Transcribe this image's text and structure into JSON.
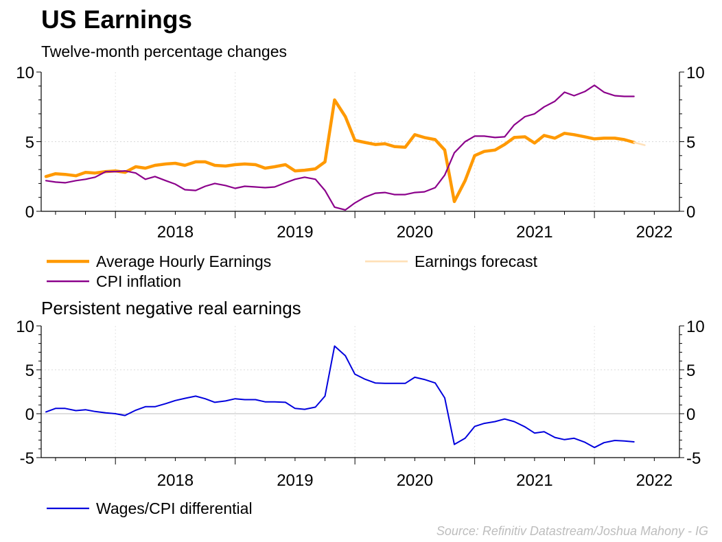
{
  "header": {
    "title": "US Earnings",
    "subtitle": "Twelve-month percentage changes"
  },
  "footer": {
    "source": "Source: Refinitiv Datastream/Joshua Mahony - IG"
  },
  "chart_data": [
    {
      "type": "line",
      "title": "",
      "x_ticks": [
        "2018",
        "2019",
        "2020",
        "2021",
        "2022"
      ],
      "ylim": [
        0,
        10
      ],
      "y_ticks": [
        "0",
        "5",
        "10"
      ],
      "grid": true,
      "dual_axis": true,
      "x_range": [
        2017.38,
        2022.71
      ],
      "legend_position": "bottom",
      "series": [
        {
          "name": "Average Hourly Earnings",
          "color": "#ff9900",
          "x": [
            2017.42,
            2017.5,
            2017.58,
            2017.67,
            2017.75,
            2017.83,
            2017.92,
            2018.0,
            2018.08,
            2018.17,
            2018.25,
            2018.33,
            2018.42,
            2018.5,
            2018.58,
            2018.67,
            2018.75,
            2018.83,
            2018.92,
            2019.0,
            2019.08,
            2019.17,
            2019.25,
            2019.33,
            2019.42,
            2019.5,
            2019.58,
            2019.67,
            2019.75,
            2019.83,
            2019.92,
            2020.0,
            2020.08,
            2020.17,
            2020.25,
            2020.33,
            2020.42,
            2020.5,
            2020.58,
            2020.67,
            2020.75,
            2020.83,
            2020.92,
            2021.0,
            2021.08,
            2021.17,
            2021.25,
            2021.33,
            2021.42,
            2021.5,
            2021.58,
            2021.67,
            2021.75,
            2021.83,
            2021.92,
            2022.0,
            2022.08,
            2022.17,
            2022.25,
            2022.33
          ],
          "values": [
            2.5,
            2.7,
            2.65,
            2.55,
            2.8,
            2.75,
            2.85,
            2.9,
            2.8,
            3.2,
            3.1,
            3.3,
            3.4,
            3.45,
            3.3,
            3.55,
            3.55,
            3.3,
            3.25,
            3.35,
            3.4,
            3.35,
            3.1,
            3.2,
            3.35,
            2.9,
            2.95,
            3.05,
            3.55,
            8.0,
            6.8,
            5.1,
            4.95,
            4.8,
            4.85,
            4.65,
            4.6,
            5.5,
            5.3,
            5.15,
            4.4,
            0.7,
            2.2,
            4.0,
            4.3,
            4.4,
            4.8,
            5.3,
            5.35,
            4.9,
            5.45,
            5.25,
            5.6,
            5.5,
            5.35,
            5.2,
            5.25,
            5.25,
            5.15,
            4.95
          ]
        },
        {
          "name": "Earnings forecast",
          "color": "#ffe0b8",
          "x": [
            2022.33,
            2022.42
          ],
          "values": [
            4.95,
            4.75
          ]
        },
        {
          "name": "CPI inflation",
          "color": "#8b008b",
          "x": [
            2017.42,
            2017.5,
            2017.58,
            2017.67,
            2017.75,
            2017.83,
            2017.92,
            2018.0,
            2018.08,
            2018.17,
            2018.25,
            2018.33,
            2018.42,
            2018.5,
            2018.58,
            2018.67,
            2018.75,
            2018.83,
            2018.92,
            2019.0,
            2019.08,
            2019.17,
            2019.25,
            2019.33,
            2019.42,
            2019.5,
            2019.58,
            2019.67,
            2019.75,
            2019.83,
            2019.92,
            2020.0,
            2020.08,
            2020.17,
            2020.25,
            2020.33,
            2020.42,
            2020.5,
            2020.58,
            2020.67,
            2020.75,
            2020.83,
            2020.92,
            2021.0,
            2021.08,
            2021.17,
            2021.25,
            2021.33,
            2021.42,
            2021.5,
            2021.58,
            2021.67,
            2021.75,
            2021.83,
            2021.92,
            2022.0,
            2022.08,
            2022.17,
            2022.25,
            2022.33
          ],
          "values": [
            2.2,
            2.1,
            2.05,
            2.2,
            2.3,
            2.45,
            2.85,
            2.85,
            2.9,
            2.75,
            2.3,
            2.5,
            2.2,
            1.95,
            1.55,
            1.5,
            1.8,
            2.0,
            1.85,
            1.65,
            1.8,
            1.75,
            1.7,
            1.75,
            2.05,
            2.3,
            2.45,
            2.3,
            1.5,
            0.3,
            0.1,
            0.6,
            1.0,
            1.3,
            1.35,
            1.2,
            1.2,
            1.35,
            1.4,
            1.7,
            2.6,
            4.2,
            5.0,
            5.4,
            5.4,
            5.3,
            5.35,
            6.2,
            6.8,
            7.0,
            7.5,
            7.9,
            8.55,
            8.3,
            8.6,
            9.05,
            8.55,
            8.3,
            8.25,
            8.25
          ]
        }
      ]
    },
    {
      "type": "line",
      "title": "Persistent negative real earnings",
      "x_ticks": [
        "2018",
        "2019",
        "2020",
        "2021",
        "2022"
      ],
      "ylim": [
        -5,
        10
      ],
      "y_ticks": [
        "-5",
        "0",
        "5",
        "10"
      ],
      "grid": true,
      "dual_axis": true,
      "x_range": [
        2017.38,
        2022.71
      ],
      "legend_position": "bottom",
      "series": [
        {
          "name": "Wages/CPI differential",
          "color": "#0000dd",
          "x": [
            2017.42,
            2017.5,
            2017.58,
            2017.67,
            2017.75,
            2017.83,
            2017.92,
            2018.0,
            2018.08,
            2018.17,
            2018.25,
            2018.33,
            2018.42,
            2018.5,
            2018.58,
            2018.67,
            2018.75,
            2018.83,
            2018.92,
            2019.0,
            2019.08,
            2019.17,
            2019.25,
            2019.33,
            2019.42,
            2019.5,
            2019.58,
            2019.67,
            2019.75,
            2019.83,
            2019.92,
            2020.0,
            2020.08,
            2020.17,
            2020.25,
            2020.33,
            2020.42,
            2020.5,
            2020.58,
            2020.67,
            2020.75,
            2020.83,
            2020.92,
            2021.0,
            2021.08,
            2021.17,
            2021.25,
            2021.33,
            2021.42,
            2021.5,
            2021.58,
            2021.67,
            2021.75,
            2021.83,
            2021.92,
            2022.0,
            2022.08,
            2022.17,
            2022.25,
            2022.33
          ],
          "values": [
            0.2,
            0.6,
            0.6,
            0.35,
            0.45,
            0.25,
            0.1,
            0.0,
            -0.2,
            0.4,
            0.8,
            0.8,
            1.15,
            1.5,
            1.75,
            2.0,
            1.7,
            1.3,
            1.45,
            1.7,
            1.6,
            1.6,
            1.35,
            1.35,
            1.3,
            0.6,
            0.5,
            0.75,
            2.0,
            7.7,
            6.6,
            4.5,
            3.95,
            3.5,
            3.45,
            3.45,
            3.45,
            4.15,
            3.9,
            3.5,
            1.8,
            -3.5,
            -2.8,
            -1.45,
            -1.1,
            -0.9,
            -0.6,
            -0.9,
            -1.5,
            -2.2,
            -2.05,
            -2.7,
            -2.95,
            -2.8,
            -3.25,
            -3.85,
            -3.3,
            -3.05,
            -3.1,
            -3.2
          ]
        }
      ]
    }
  ]
}
